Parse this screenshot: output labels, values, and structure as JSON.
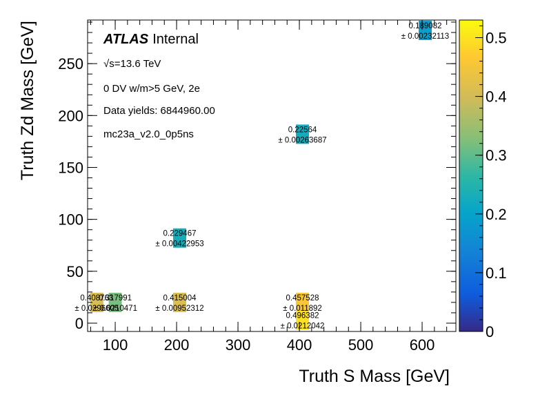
{
  "chart_data": {
    "type": "heatmap",
    "xlabel": "Truth S Mass [GeV]",
    "ylabel": "Truth Zd Mass [GeV]",
    "xlim": [
      55,
      655
    ],
    "ylim": [
      -8,
      292
    ],
    "xticks": [
      100,
      200,
      300,
      400,
      500,
      600
    ],
    "yticks": [
      0,
      50,
      100,
      150,
      200,
      250
    ],
    "colorbar": {
      "range": [
        0,
        0.53
      ],
      "ticks": [
        0,
        0.1,
        0.2,
        0.3,
        0.4,
        0.5
      ]
    },
    "annotations": {
      "experiment": "ATLAS",
      "status": "Internal",
      "energy": "√s=13.6 TeV",
      "selection": "0 DV w/m>5 GeV, 2e",
      "yields": "Data yields: 6844960.00",
      "sample": "mc23a_v2.0_0p5ns"
    },
    "cells": [
      {
        "x": 70,
        "y": 20,
        "value": 0.408763,
        "value_label": "0.408763",
        "error_label": "± 0.0296605"
      },
      {
        "x": 100,
        "y": 20,
        "value": 0.317991,
        "value_label": "0.317991",
        "error_label": "± 0.0210471"
      },
      {
        "x": 205,
        "y": 20,
        "value": 0.415004,
        "value_label": "0.415004",
        "error_label": "± 0.00952312"
      },
      {
        "x": 205,
        "y": 82,
        "value": 0.229467,
        "value_label": "0.229467",
        "error_label": "± 0.00422953"
      },
      {
        "x": 405,
        "y": 20,
        "value": 0.457528,
        "value_label": "0.457528",
        "error_label": "± 0.011892"
      },
      {
        "x": 405,
        "y": 3,
        "value": 0.496382,
        "value_label": "0.496382",
        "error_label": "± 0.0212042"
      },
      {
        "x": 405,
        "y": 182,
        "value": 0.22564,
        "value_label": "0.22564",
        "error_label": "± 0.00263687"
      },
      {
        "x": 605,
        "y": 282,
        "value": 0.189082,
        "value_label": "0.189082",
        "error_label": "± 0.00232113"
      }
    ]
  }
}
